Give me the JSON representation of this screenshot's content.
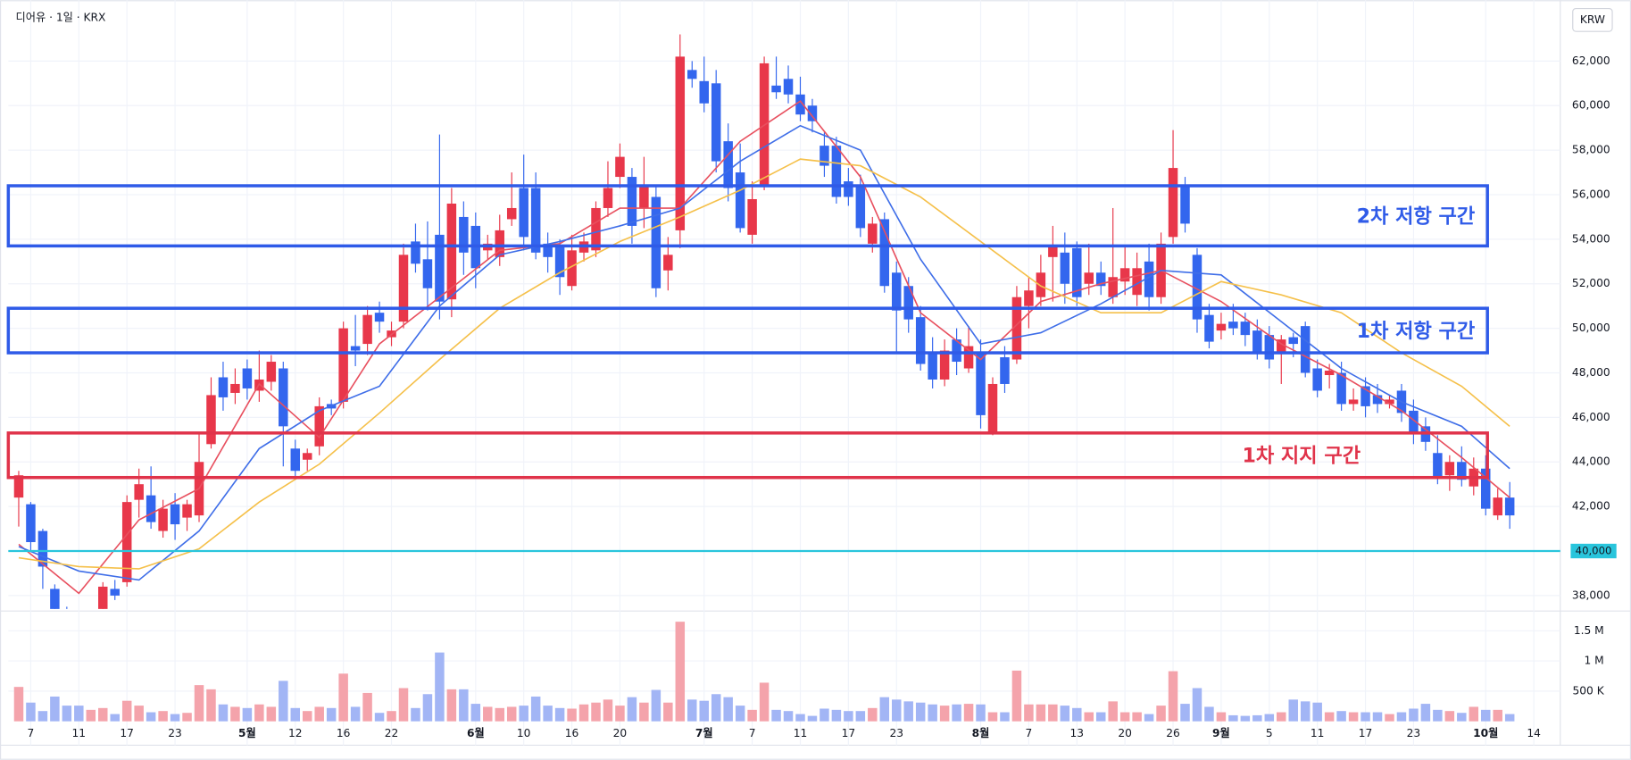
{
  "chart_data": {
    "type": "candlestick",
    "header": "디어유 · 1일 · KRX",
    "currency": "KRW",
    "categories": [
      null,
      "7",
      null,
      null,
      null,
      "11",
      null,
      null,
      null,
      "17",
      null,
      null,
      null,
      "23",
      null,
      null,
      null,
      null,
      null,
      "5월",
      null,
      null,
      null,
      "12",
      null,
      null,
      null,
      "16",
      null,
      null,
      null,
      "22",
      null,
      null,
      null,
      null,
      null,
      null,
      "6월",
      null,
      null,
      null,
      "10",
      null,
      null,
      null,
      "16",
      null,
      null,
      null,
      "20",
      null,
      null,
      null,
      null,
      null,
      null,
      "7월",
      null,
      null,
      null,
      "7",
      null,
      null,
      null,
      "11",
      null,
      null,
      null,
      "17",
      null,
      null,
      null,
      "23",
      null,
      null,
      null,
      null,
      null,
      null,
      "8월",
      null,
      null,
      null,
      "7",
      null,
      null,
      null,
      "13",
      null,
      null,
      null,
      "20",
      null,
      null,
      null,
      "26",
      null,
      null,
      null,
      "9월",
      null,
      null,
      null,
      "5",
      null,
      null,
      null,
      "11",
      null,
      null,
      null,
      "17",
      null,
      null,
      null,
      "23",
      null,
      null,
      null,
      null,
      null,
      "10월",
      null,
      null,
      null,
      "14"
    ],
    "open": [
      42400,
      42100,
      40900,
      38300,
      37200,
      36000,
      35500,
      37200,
      38300,
      38600,
      42300,
      42500,
      40900,
      42100,
      41500,
      41600,
      44800,
      47800,
      47100,
      48200,
      47200,
      47600,
      48200,
      44600,
      44100,
      44700,
      46600,
      46700,
      49200,
      49300,
      50700,
      49600,
      50300,
      53900,
      53100,
      54200,
      51300,
      55000,
      54600,
      53500,
      53200,
      54900,
      56300,
      56300,
      53800,
      53700,
      51900,
      53400,
      53500,
      55400,
      56800,
      56800,
      55400,
      55900,
      52600,
      54400,
      61600,
      61100,
      61000,
      58400,
      57000,
      54200,
      56400,
      60900,
      61200,
      60500,
      60000,
      58200,
      58200,
      56600,
      56400,
      53800,
      54900,
      52500,
      51900,
      50500,
      48900,
      47700,
      49500,
      48200,
      48900,
      45300,
      48700,
      48600,
      51000,
      51400,
      53200,
      53400,
      53600,
      52000,
      52500,
      51400,
      52100,
      51500,
      53000,
      51400,
      54100,
      56400,
      53300,
      50600,
      49900,
      50300,
      50300,
      49900,
      49700,
      48900,
      49600,
      50100,
      48200,
      47900,
      48000,
      46600,
      47400,
      47000,
      46600,
      47200,
      46300,
      45600,
      44400,
      43400,
      44000,
      42900,
      43700,
      41600,
      42400,
      null,
      null
    ],
    "high": [
      43600,
      42200,
      41000,
      38500,
      37500,
      36500,
      37300,
      38600,
      38700,
      42500,
      43700,
      43800,
      42300,
      42600,
      42300,
      45300,
      47800,
      48500,
      48200,
      48600,
      49000,
      48800,
      48500,
      45000,
      44600,
      46900,
      46800,
      50300,
      50600,
      51000,
      51200,
      50300,
      53800,
      54700,
      54800,
      58700,
      56300,
      55700,
      55200,
      54200,
      55100,
      57000,
      57800,
      57000,
      54300,
      54000,
      54200,
      54300,
      55700,
      57500,
      58300,
      57200,
      57700,
      56400,
      54100,
      63200,
      62000,
      62200,
      61600,
      59200,
      58300,
      56600,
      62200,
      62200,
      61800,
      61300,
      60300,
      58800,
      58600,
      57200,
      56900,
      55000,
      55200,
      53000,
      52300,
      51000,
      49600,
      49500,
      50000,
      50100,
      49500,
      47800,
      49200,
      51900,
      52300,
      53300,
      54600,
      54300,
      53900,
      53800,
      53000,
      55400,
      53700,
      53400,
      53800,
      54300,
      58900,
      56800,
      53600,
      51100,
      50700,
      51100,
      50700,
      50400,
      50100,
      49700,
      49800,
      50300,
      48600,
      48400,
      48500,
      47300,
      47800,
      47500,
      47000,
      47500,
      46800,
      46000,
      45200,
      44300,
      44700,
      44200,
      44300,
      42800,
      43100,
      null,
      null
    ],
    "low": [
      41100,
      40000,
      38300,
      36800,
      35500,
      35000,
      35000,
      36800,
      37800,
      38400,
      41500,
      41000,
      40600,
      40500,
      40900,
      41300,
      44600,
      46300,
      46600,
      46800,
      46700,
      47200,
      43800,
      43300,
      43600,
      44300,
      46100,
      46400,
      48300,
      48800,
      49800,
      49200,
      50000,
      52500,
      50800,
      50400,
      50500,
      52400,
      51800,
      53100,
      52800,
      54600,
      53500,
      53100,
      52500,
      51500,
      51700,
      53000,
      53200,
      55000,
      56300,
      53800,
      54500,
      51400,
      51700,
      53600,
      60800,
      59700,
      57000,
      55700,
      54300,
      53800,
      56200,
      60300,
      60100,
      59300,
      58800,
      56800,
      55600,
      55500,
      54100,
      53400,
      51600,
      48900,
      49800,
      48100,
      47300,
      47400,
      47900,
      48000,
      45500,
      45200,
      47100,
      48400,
      50000,
      51000,
      51200,
      51100,
      51000,
      51500,
      51500,
      51100,
      51500,
      51000,
      50800,
      51100,
      53800,
      54300,
      49800,
      49100,
      49500,
      49700,
      49200,
      48600,
      48200,
      47500,
      48700,
      47800,
      46900,
      47300,
      46300,
      46300,
      46000,
      46200,
      46400,
      45800,
      44800,
      44500,
      43000,
      42700,
      42900,
      42500,
      41600,
      41400,
      41000,
      null,
      null
    ],
    "close": [
      43400,
      40400,
      39300,
      37200,
      36000,
      35500,
      36500,
      38400,
      38000,
      42200,
      43000,
      41300,
      41900,
      41200,
      42100,
      44000,
      47000,
      46900,
      47500,
      47300,
      47700,
      48500,
      45600,
      43600,
      44400,
      46500,
      46400,
      50000,
      49000,
      50600,
      50300,
      49900,
      53300,
      52900,
      51800,
      51200,
      55600,
      53400,
      52700,
      53800,
      54400,
      55400,
      54100,
      53400,
      53200,
      52300,
      53500,
      53900,
      55400,
      56300,
      57700,
      54600,
      56400,
      51800,
      53300,
      62200,
      61200,
      60100,
      57500,
      56300,
      54500,
      55800,
      61900,
      60600,
      60500,
      59600,
      59300,
      57300,
      55900,
      55900,
      54500,
      54700,
      51900,
      50800,
      50400,
      48400,
      47700,
      49000,
      48500,
      49200,
      46100,
      47500,
      47500,
      51400,
      51700,
      52500,
      53700,
      52000,
      51400,
      52500,
      51900,
      52300,
      52700,
      52700,
      51400,
      53800,
      57200,
      54700,
      50400,
      49400,
      50200,
      50000,
      49700,
      48900,
      48600,
      49500,
      49300,
      48000,
      47200,
      48100,
      46600,
      46800,
      46500,
      46600,
      46800,
      46200,
      45300,
      44900,
      43300,
      44000,
      43200,
      43700,
      41900,
      42400,
      41600,
      null,
      null
    ],
    "up_color": "#e8374a",
    "down_color": "#3366ee",
    "ylim": [
      37400,
      64500
    ],
    "yticks": [
      {
        "value": 38000,
        "label": "38,000"
      },
      {
        "value": 40000,
        "label": "40,000"
      },
      {
        "value": 42000,
        "label": "42,000"
      },
      {
        "value": 44000,
        "label": "44,000"
      },
      {
        "value": 46000,
        "label": "46,000"
      },
      {
        "value": 48000,
        "label": "48,000"
      },
      {
        "value": 50000,
        "label": "50,000"
      },
      {
        "value": 52000,
        "label": "52,000"
      },
      {
        "value": 54000,
        "label": "54,000"
      },
      {
        "value": 56000,
        "label": "56,000"
      },
      {
        "value": 58000,
        "label": "58,000"
      },
      {
        "value": 60000,
        "label": "60,000"
      },
      {
        "value": 62000,
        "label": "62,000"
      }
    ],
    "grid": true,
    "moving_averages": [
      {
        "color": "#f0babb",
        "line_color": "#e8505f",
        "x": [
          0,
          5,
          10,
          15,
          20,
          25,
          30,
          35,
          40,
          45,
          50,
          55,
          60,
          65,
          70,
          75,
          80,
          85,
          90,
          95,
          100,
          105,
          110,
          115,
          120,
          124
        ],
        "values": [
          40300,
          38100,
          41400,
          42800,
          47500,
          45100,
          49300,
          51400,
          53500,
          53800,
          55400,
          55400,
          58400,
          60200,
          56800,
          50700,
          48600,
          51200,
          52000,
          52600,
          51200,
          49300,
          47900,
          46300,
          44200,
          42400
        ]
      },
      {
        "color": "#3f6ee8",
        "line_color": "#3f6ee8",
        "x": [
          0,
          5,
          10,
          15,
          20,
          25,
          30,
          35,
          40,
          45,
          50,
          55,
          60,
          65,
          70,
          75,
          80,
          85,
          90,
          95,
          100,
          105,
          110,
          115,
          120,
          124
        ],
        "values": [
          40200,
          39100,
          38700,
          40900,
          44600,
          46300,
          47400,
          51000,
          53300,
          53900,
          54600,
          55400,
          57500,
          59100,
          58000,
          53100,
          49300,
          49800,
          51100,
          52600,
          52400,
          50300,
          48200,
          46700,
          45600,
          43700
        ]
      },
      {
        "color": "#f5c04a",
        "line_color": "#f5c04a",
        "x": [
          0,
          5,
          10,
          15,
          20,
          25,
          30,
          35,
          40,
          45,
          50,
          55,
          60,
          65,
          70,
          75,
          80,
          85,
          90,
          95,
          100,
          105,
          110,
          115,
          120,
          124
        ],
        "values": [
          39700,
          39300,
          39200,
          40100,
          42200,
          43900,
          46200,
          48600,
          50900,
          52500,
          53900,
          55000,
          56200,
          57600,
          57300,
          55900,
          53900,
          51900,
          50700,
          50700,
          52100,
          51500,
          50700,
          48900,
          47400,
          45600
        ]
      }
    ],
    "zones": [
      {
        "label": "2차 저항 구간",
        "top": 56400,
        "bottom": 53700,
        "color": "#2f5be8"
      },
      {
        "label": "1차 저항 구간",
        "top": 50900,
        "bottom": 48900,
        "color": "#2f5be8"
      },
      {
        "label": "1차 지지 구간",
        "top": 45300,
        "bottom": 43300,
        "color": "#e0334a"
      }
    ],
    "price_line": {
      "value": 40000,
      "label": "40,000",
      "color": "#29c5dc"
    },
    "volume": {
      "values": [
        570000,
        310000,
        170000,
        410000,
        260000,
        260000,
        190000,
        220000,
        120000,
        340000,
        260000,
        150000,
        170000,
        120000,
        140000,
        600000,
        530000,
        280000,
        240000,
        220000,
        280000,
        240000,
        670000,
        220000,
        170000,
        240000,
        220000,
        790000,
        240000,
        470000,
        140000,
        170000,
        550000,
        220000,
        450000,
        1140000,
        530000,
        530000,
        290000,
        240000,
        220000,
        240000,
        260000,
        410000,
        260000,
        220000,
        210000,
        280000,
        310000,
        360000,
        260000,
        400000,
        310000,
        520000,
        310000,
        1650000,
        360000,
        340000,
        450000,
        400000,
        260000,
        190000,
        640000,
        190000,
        170000,
        120000,
        90000,
        210000,
        190000,
        170000,
        170000,
        220000,
        400000,
        360000,
        330000,
        310000,
        280000,
        260000,
        280000,
        290000,
        280000,
        150000,
        150000,
        840000,
        280000,
        280000,
        280000,
        260000,
        220000,
        150000,
        150000,
        330000,
        150000,
        150000,
        120000,
        260000,
        830000,
        290000,
        550000,
        240000,
        150000,
        100000,
        90000,
        100000,
        120000,
        150000,
        360000,
        330000,
        310000,
        150000,
        170000,
        150000,
        150000,
        150000,
        120000,
        150000,
        210000,
        290000,
        190000,
        170000,
        140000,
        240000,
        190000,
        190000,
        120000,
        null,
        null
      ],
      "up_color": "#f4a3ab",
      "down_color": "#a2b5f5",
      "ylim": [
        0,
        1655000
      ],
      "yticks": [
        {
          "value": 500000,
          "label": "500 K"
        },
        {
          "value": 1000000,
          "label": "1 M"
        },
        {
          "value": 1500000,
          "label": "1.5 M"
        }
      ]
    }
  }
}
